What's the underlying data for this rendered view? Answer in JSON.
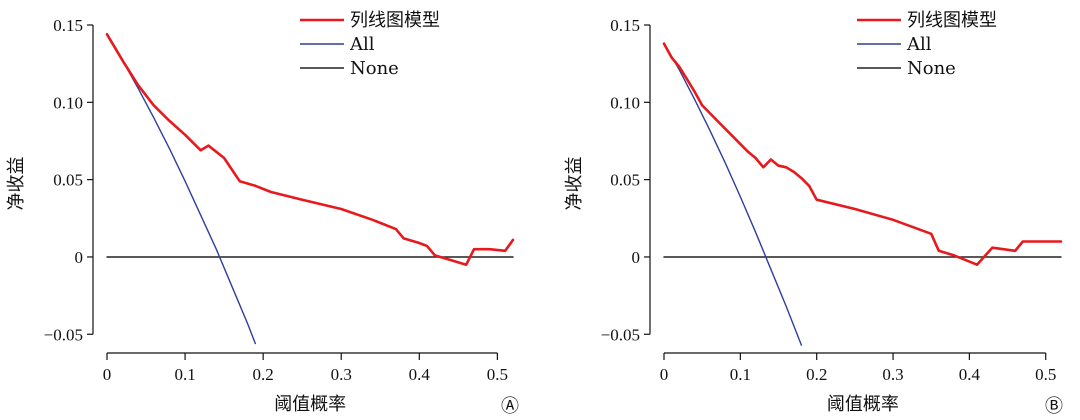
{
  "chart_data": [
    {
      "type": "line",
      "panel_label": "Ⓐ",
      "xlabel": "阈值概率",
      "ylabel": "净收益",
      "xlim": [
        0,
        0.52
      ],
      "ylim": [
        -0.055,
        0.15
      ],
      "xticks": [
        0,
        0.1,
        0.2,
        0.3,
        0.4,
        0.5
      ],
      "xtick_labels": [
        "0",
        "0.1",
        "0.2",
        "0.3",
        "0.4",
        "0.5"
      ],
      "yticks": [
        -0.05,
        0,
        0.05,
        0.1,
        0.15
      ],
      "ytick_labels": [
        "−0.05",
        "0",
        "0.05",
        "0.10",
        "0.15"
      ],
      "legend_position": "top-right",
      "series": [
        {
          "name": "列线图模型",
          "color": "#e8191d",
          "x": [
            0,
            0.02,
            0.04,
            0.06,
            0.08,
            0.1,
            0.12,
            0.13,
            0.14,
            0.15,
            0.17,
            0.19,
            0.21,
            0.25,
            0.3,
            0.34,
            0.37,
            0.38,
            0.4,
            0.41,
            0.42,
            0.44,
            0.46,
            0.47,
            0.49,
            0.51,
            0.52
          ],
          "y": [
            0.144,
            0.127,
            0.111,
            0.098,
            0.088,
            0.079,
            0.069,
            0.072,
            0.068,
            0.064,
            0.049,
            0.046,
            0.042,
            0.037,
            0.031,
            0.024,
            0.018,
            0.012,
            0.009,
            0.007,
            0.001,
            -0.002,
            -0.005,
            0.005,
            0.005,
            0.004,
            0.011
          ]
        },
        {
          "name": "All",
          "color": "#2f3d9e",
          "x": [
            0,
            0.02,
            0.04,
            0.06,
            0.08,
            0.1,
            0.12,
            0.14,
            0.16,
            0.18,
            0.19
          ],
          "y": [
            0.144,
            0.127,
            0.109,
            0.09,
            0.07,
            0.049,
            0.027,
            0.005,
            -0.019,
            -0.043,
            -0.056
          ]
        },
        {
          "name": "None",
          "color": "#222222",
          "x": [
            0,
            0.52
          ],
          "y": [
            0,
            0
          ]
        }
      ]
    },
    {
      "type": "line",
      "panel_label": "Ⓑ",
      "xlabel": "阈值概率",
      "ylabel": "净收益",
      "xlim": [
        0,
        0.52
      ],
      "ylim": [
        -0.055,
        0.15
      ],
      "xticks": [
        0,
        0.1,
        0.2,
        0.3,
        0.4,
        0.5
      ],
      "xtick_labels": [
        "0",
        "0.1",
        "0.2",
        "0.3",
        "0.4",
        "0.5"
      ],
      "yticks": [
        -0.05,
        0,
        0.05,
        0.1,
        0.15
      ],
      "ytick_labels": [
        "−0.05",
        "0",
        "0.05",
        "0.10",
        "0.15"
      ],
      "legend_position": "top-right",
      "series": [
        {
          "name": "列线图模型",
          "color": "#e8191d",
          "x": [
            0,
            0.01,
            0.02,
            0.03,
            0.04,
            0.05,
            0.07,
            0.09,
            0.11,
            0.12,
            0.13,
            0.14,
            0.15,
            0.16,
            0.17,
            0.18,
            0.19,
            0.2,
            0.25,
            0.3,
            0.35,
            0.36,
            0.38,
            0.4,
            0.41,
            0.43,
            0.46,
            0.47,
            0.5,
            0.52
          ],
          "y": [
            0.138,
            0.129,
            0.123,
            0.115,
            0.107,
            0.098,
            0.088,
            0.078,
            0.068,
            0.064,
            0.058,
            0.063,
            0.059,
            0.058,
            0.055,
            0.051,
            0.046,
            0.037,
            0.031,
            0.024,
            0.015,
            0.004,
            0.001,
            -0.003,
            -0.005,
            0.006,
            0.004,
            0.01,
            0.01,
            0.01
          ]
        },
        {
          "name": "All",
          "color": "#2f3d9e",
          "x": [
            0,
            0.02,
            0.04,
            0.06,
            0.08,
            0.1,
            0.12,
            0.14,
            0.16,
            0.18
          ],
          "y": [
            0.138,
            0.121,
            0.102,
            0.082,
            0.061,
            0.039,
            0.016,
            -0.008,
            -0.032,
            -0.057
          ]
        },
        {
          "name": "None",
          "color": "#222222",
          "x": [
            0,
            0.52
          ],
          "y": [
            0,
            0
          ]
        }
      ]
    }
  ]
}
